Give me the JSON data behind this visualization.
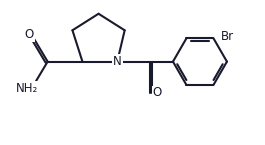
{
  "bg_color": "#ffffff",
  "line_color": "#1a1a2e",
  "lw": 1.5,
  "figsize": [
    2.65,
    1.45
  ],
  "dpi": 100,
  "xlim": [
    0.0,
    5.8
  ],
  "ylim": [
    0.2,
    3.5
  ]
}
